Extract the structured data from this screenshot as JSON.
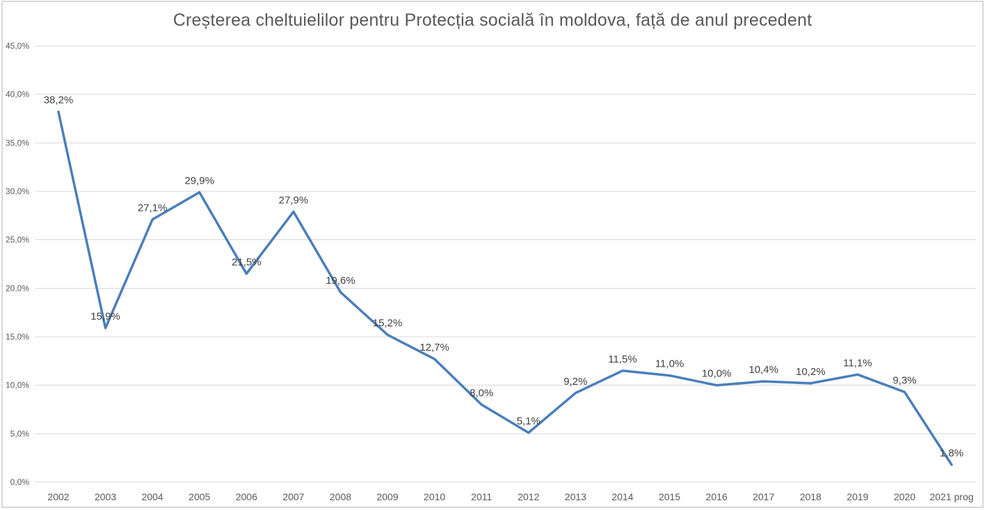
{
  "chart_data": {
    "type": "line",
    "title": "Creșterea cheltuielilor pentru Protecția socială în moldova, față de anul precedent",
    "categories": [
      "2002",
      "2003",
      "2004",
      "2005",
      "2006",
      "2007",
      "2008",
      "2009",
      "2010",
      "2011",
      "2012",
      "2013",
      "2014",
      "2015",
      "2016",
      "2017",
      "2018",
      "2019",
      "2020",
      "2021 prog"
    ],
    "values": [
      38.2,
      15.9,
      27.1,
      29.9,
      21.5,
      27.9,
      19.6,
      15.2,
      12.7,
      8.0,
      5.1,
      9.2,
      11.5,
      11.0,
      10.0,
      10.4,
      10.2,
      11.1,
      9.3,
      1.8
    ],
    "data_labels": [
      "38,2%",
      "15,9%",
      "27,1%",
      "29,9%",
      "21,5%",
      "27,9%",
      "19,6%",
      "15,2%",
      "12,7%",
      "8,0%",
      "5,1%",
      "9,2%",
      "11,5%",
      "11,0%",
      "10,0%",
      "10,4%",
      "10,2%",
      "11,1%",
      "9,3%",
      "1,8%"
    ],
    "y_axis": {
      "tick_values": [
        0,
        5,
        10,
        15,
        20,
        25,
        30,
        35,
        40,
        45
      ],
      "tick_labels": [
        "0,0%",
        "5,0%",
        "10,0%",
        "15,0%",
        "20,0%",
        "25,0%",
        "30,0%",
        "35,0%",
        "40,0%",
        "45,0%"
      ]
    },
    "ylim": [
      0,
      45
    ],
    "grid": true,
    "legend_position": "none",
    "colors": {
      "line": "#4a7ebc",
      "grid": "#d9d9d9",
      "data_label": "#404040",
      "axis_label": "#595959",
      "title": "#595959",
      "frame_border": "#d8d8d8",
      "background": "#ffffff"
    }
  }
}
